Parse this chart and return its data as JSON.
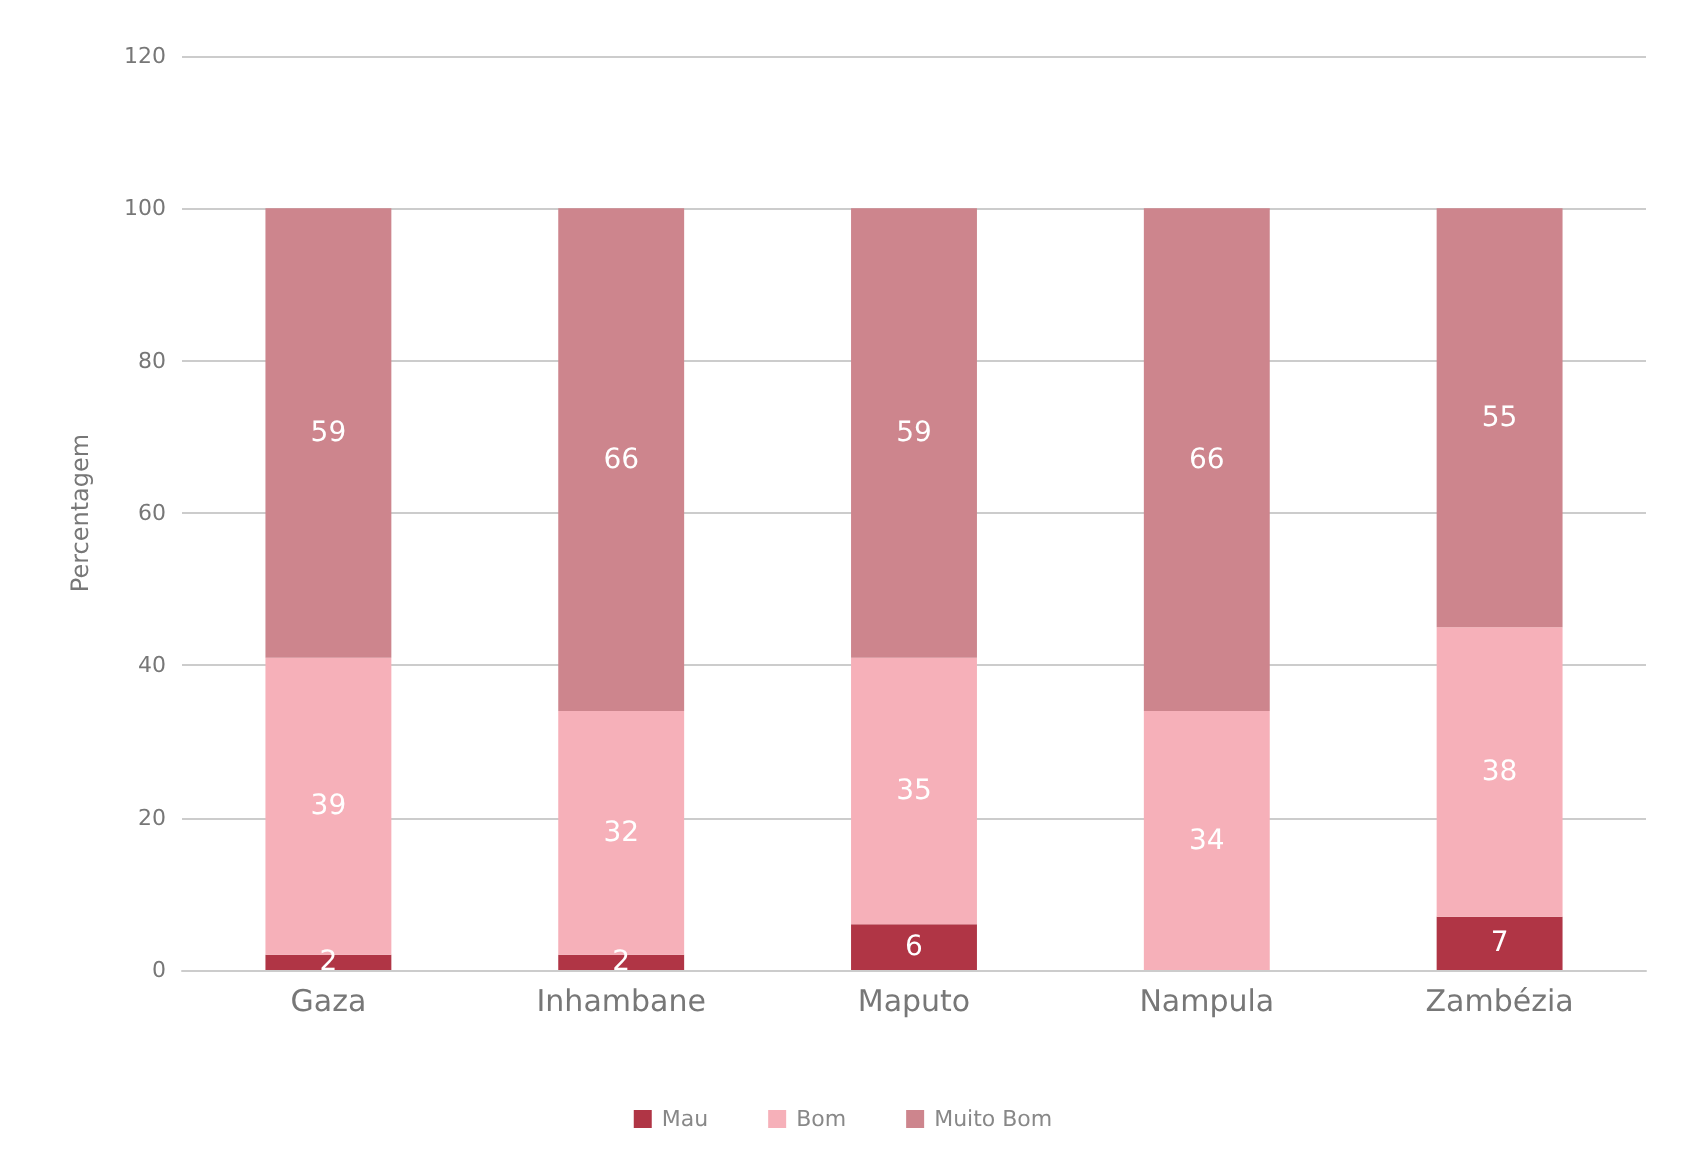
{
  "chart_data": {
    "type": "bar",
    "stacked": true,
    "ylabel": "Percentagem",
    "categories": [
      "Gaza",
      "Inhambane",
      "Maputo",
      "Nampula",
      "Zambézia"
    ],
    "series": [
      {
        "name": "Mau",
        "color": "#b03545",
        "values": [
          2,
          2,
          6,
          0,
          7
        ],
        "value_labels": [
          "2",
          "2",
          "6",
          null,
          "7"
        ]
      },
      {
        "name": "Bom",
        "color": "#f6b0b9",
        "values": [
          39,
          32,
          35,
          34,
          38
        ],
        "value_labels": [
          "39",
          "32",
          "35",
          "34",
          "38"
        ]
      },
      {
        "name": "Muito Bom",
        "color": "#cd858d",
        "values": [
          59,
          66,
          59,
          66,
          55
        ],
        "value_labels": [
          "59",
          "66",
          "59",
          "66",
          "55"
        ]
      }
    ],
    "ylim": [
      0,
      120
    ],
    "yticks": [
      0,
      20,
      40,
      60,
      80,
      100,
      120
    ],
    "grid": "y",
    "legend": "bottom"
  }
}
